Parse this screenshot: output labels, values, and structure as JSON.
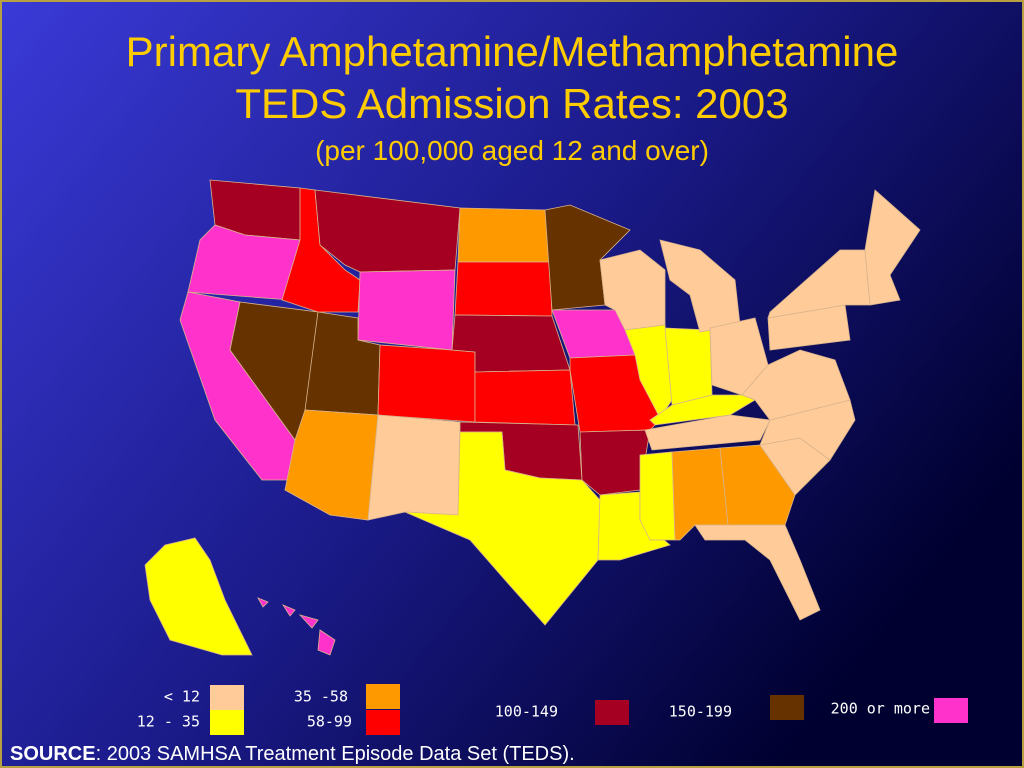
{
  "header": {
    "title": [
      "Primary Amphetamine/Methamphetamine",
      "TEDS Admission Rates: 2003"
    ],
    "subtitle": "(per 100,000 aged 12 and over)"
  },
  "legend": {
    "items": [
      {
        "label": "< 12",
        "color": "#ffcc99"
      },
      {
        "label": "12 - 35",
        "color": "#ffff00"
      },
      {
        "label": "35 -58",
        "color": "#ff9900"
      },
      {
        "label": "58-99",
        "color": "#ff0000"
      },
      {
        "label": "100-149",
        "color": "#a50021"
      },
      {
        "label": "150-199",
        "color": "#663300"
      },
      {
        "label": "200 or more",
        "color": "#ff33cc"
      }
    ]
  },
  "source": {
    "label": "SOURCE",
    "text": ": 2003 SAMHSA Treatment Episode Data Set (TEDS)."
  }
}
